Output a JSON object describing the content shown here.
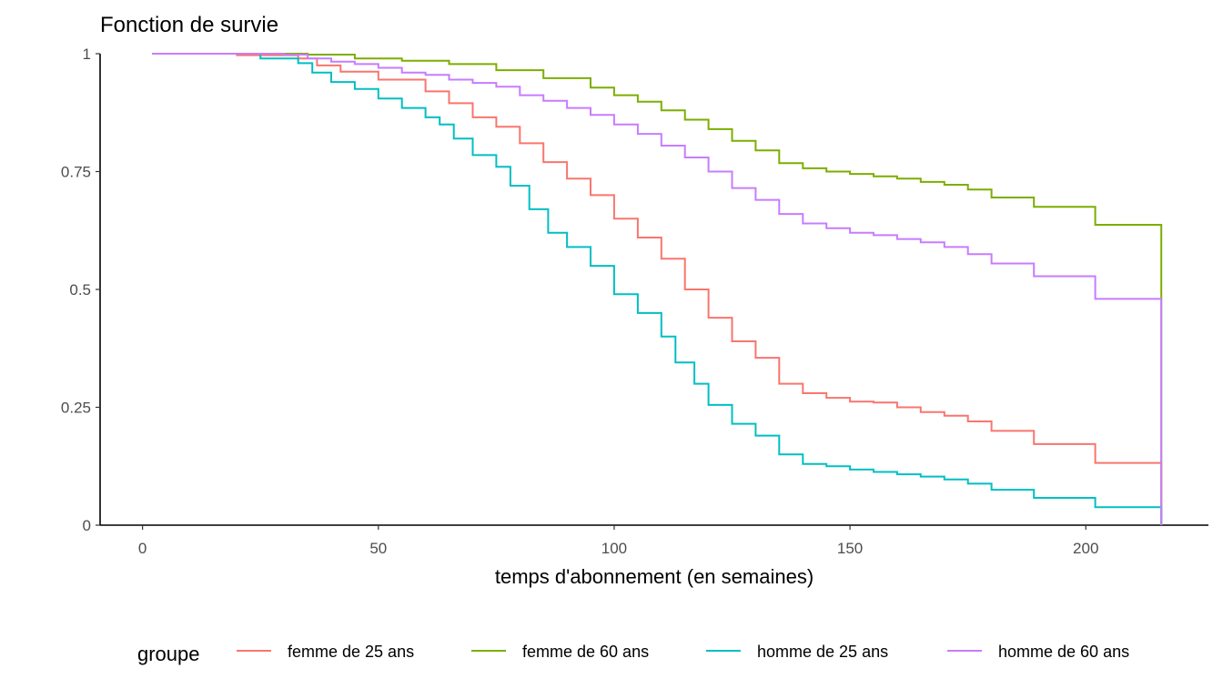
{
  "chart_data": {
    "type": "line",
    "step": true,
    "title": "Fonction de survie",
    "xlabel": "temps d'abonnement (en semaines)",
    "ylabel": "",
    "xlim": [
      -9,
      226
    ],
    "ylim": [
      0,
      1
    ],
    "x_ticks": [
      0,
      50,
      100,
      150,
      200
    ],
    "x_tick_labels": [
      "0",
      "50",
      "100",
      "150",
      "200"
    ],
    "y_ticks": [
      0,
      0.25,
      0.5,
      0.75,
      1
    ],
    "y_tick_labels": [
      "0",
      "0.25",
      "0.5",
      "0.75",
      "1"
    ],
    "grid": false,
    "legend": {
      "title": "groupe",
      "position": "bottom"
    },
    "series": [
      {
        "name": "femme de 25 ans",
        "color": "#F8766D",
        "points": [
          [
            2,
            1.0
          ],
          [
            20,
            0.997
          ],
          [
            33,
            0.99
          ],
          [
            37,
            0.975
          ],
          [
            42,
            0.962
          ],
          [
            50,
            0.945
          ],
          [
            60,
            0.92
          ],
          [
            65,
            0.895
          ],
          [
            70,
            0.865
          ],
          [
            75,
            0.845
          ],
          [
            80,
            0.81
          ],
          [
            85,
            0.77
          ],
          [
            90,
            0.735
          ],
          [
            95,
            0.7
          ],
          [
            100,
            0.65
          ],
          [
            105,
            0.61
          ],
          [
            110,
            0.565
          ],
          [
            115,
            0.5
          ],
          [
            120,
            0.44
          ],
          [
            125,
            0.39
          ],
          [
            130,
            0.355
          ],
          [
            135,
            0.3
          ],
          [
            140,
            0.28
          ],
          [
            145,
            0.27
          ],
          [
            150,
            0.262
          ],
          [
            155,
            0.26
          ],
          [
            160,
            0.25
          ],
          [
            165,
            0.24
          ],
          [
            170,
            0.232
          ],
          [
            175,
            0.22
          ],
          [
            180,
            0.2
          ],
          [
            189,
            0.172
          ],
          [
            202,
            0.132
          ],
          [
            216,
            0.132
          ],
          [
            216,
            0.0
          ]
        ]
      },
      {
        "name": "femme de 60 ans",
        "color": "#7CAE00",
        "points": [
          [
            2,
            1.0
          ],
          [
            35,
            0.998
          ],
          [
            45,
            0.99
          ],
          [
            55,
            0.985
          ],
          [
            65,
            0.978
          ],
          [
            75,
            0.965
          ],
          [
            85,
            0.948
          ],
          [
            95,
            0.928
          ],
          [
            100,
            0.912
          ],
          [
            105,
            0.898
          ],
          [
            110,
            0.88
          ],
          [
            115,
            0.86
          ],
          [
            120,
            0.84
          ],
          [
            125,
            0.815
          ],
          [
            130,
            0.795
          ],
          [
            135,
            0.768
          ],
          [
            140,
            0.757
          ],
          [
            145,
            0.75
          ],
          [
            150,
            0.745
          ],
          [
            155,
            0.74
          ],
          [
            160,
            0.735
          ],
          [
            165,
            0.728
          ],
          [
            170,
            0.722
          ],
          [
            175,
            0.712
          ],
          [
            180,
            0.695
          ],
          [
            189,
            0.675
          ],
          [
            202,
            0.637
          ],
          [
            216,
            0.637
          ],
          [
            216,
            0.0
          ]
        ]
      },
      {
        "name": "homme de 25 ans",
        "color": "#00BFC4",
        "points": [
          [
            2,
            1.0
          ],
          [
            25,
            0.99
          ],
          [
            33,
            0.98
          ],
          [
            36,
            0.96
          ],
          [
            40,
            0.94
          ],
          [
            45,
            0.925
          ],
          [
            50,
            0.905
          ],
          [
            55,
            0.885
          ],
          [
            60,
            0.865
          ],
          [
            63,
            0.85
          ],
          [
            66,
            0.82
          ],
          [
            70,
            0.785
          ],
          [
            75,
            0.76
          ],
          [
            78,
            0.72
          ],
          [
            82,
            0.67
          ],
          [
            86,
            0.62
          ],
          [
            90,
            0.59
          ],
          [
            95,
            0.55
          ],
          [
            100,
            0.49
          ],
          [
            105,
            0.45
          ],
          [
            110,
            0.4
          ],
          [
            113,
            0.345
          ],
          [
            117,
            0.3
          ],
          [
            120,
            0.255
          ],
          [
            125,
            0.215
          ],
          [
            130,
            0.19
          ],
          [
            135,
            0.15
          ],
          [
            140,
            0.13
          ],
          [
            145,
            0.125
          ],
          [
            150,
            0.118
          ],
          [
            155,
            0.113
          ],
          [
            160,
            0.108
          ],
          [
            165,
            0.103
          ],
          [
            170,
            0.097
          ],
          [
            175,
            0.088
          ],
          [
            180,
            0.075
          ],
          [
            189,
            0.058
          ],
          [
            202,
            0.038
          ],
          [
            216,
            0.038
          ],
          [
            216,
            0.0
          ]
        ]
      },
      {
        "name": "homme de 60 ans",
        "color": "#C77CFF",
        "points": [
          [
            2,
            1.0
          ],
          [
            30,
            0.998
          ],
          [
            35,
            0.99
          ],
          [
            40,
            0.983
          ],
          [
            45,
            0.978
          ],
          [
            50,
            0.97
          ],
          [
            55,
            0.96
          ],
          [
            60,
            0.955
          ],
          [
            65,
            0.945
          ],
          [
            70,
            0.938
          ],
          [
            75,
            0.93
          ],
          [
            80,
            0.912
          ],
          [
            85,
            0.9
          ],
          [
            90,
            0.885
          ],
          [
            95,
            0.87
          ],
          [
            100,
            0.85
          ],
          [
            105,
            0.83
          ],
          [
            110,
            0.805
          ],
          [
            115,
            0.78
          ],
          [
            120,
            0.75
          ],
          [
            125,
            0.715
          ],
          [
            130,
            0.69
          ],
          [
            135,
            0.66
          ],
          [
            140,
            0.64
          ],
          [
            145,
            0.63
          ],
          [
            150,
            0.62
          ],
          [
            155,
            0.615
          ],
          [
            160,
            0.607
          ],
          [
            165,
            0.6
          ],
          [
            170,
            0.59
          ],
          [
            175,
            0.575
          ],
          [
            180,
            0.555
          ],
          [
            189,
            0.528
          ],
          [
            202,
            0.48
          ],
          [
            216,
            0.48
          ],
          [
            216,
            0.0
          ]
        ]
      }
    ]
  }
}
